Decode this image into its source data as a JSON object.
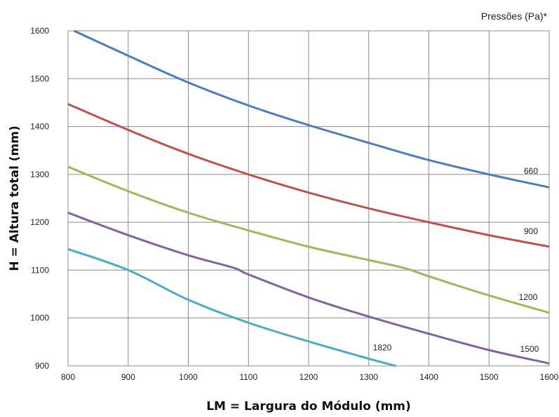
{
  "chart_data": {
    "type": "line",
    "title": "",
    "legend_title": "Pressões (Pa)*",
    "xlabel": "LM = Largura do Módulo (mm)",
    "ylabel": "H = Altura total (mm)",
    "xlim": [
      800,
      1600
    ],
    "ylim": [
      900,
      1600
    ],
    "xticks": [
      "800",
      "900",
      "1000",
      "1100",
      "1200",
      "1300",
      "1400",
      "1500",
      "1600"
    ],
    "yticks": [
      "900",
      "1000",
      "1100",
      "1200",
      "1300",
      "1400",
      "1500",
      "1600"
    ],
    "grid": true,
    "series": [
      {
        "name": "660",
        "color": "#4a7ebf",
        "x": [
          810,
          900,
          1000,
          1100,
          1200,
          1300,
          1400,
          1500,
          1600
        ],
        "y": [
          1600,
          1548,
          1492,
          1444,
          1403,
          1366,
          1330,
          1300,
          1273
        ]
      },
      {
        "name": "900",
        "color": "#c0504d",
        "x": [
          800,
          900,
          1000,
          1100,
          1200,
          1300,
          1400,
          1500,
          1600
        ],
        "y": [
          1447,
          1393,
          1343,
          1300,
          1262,
          1229,
          1200,
          1173,
          1149
        ]
      },
      {
        "name": "1200",
        "color": "#9bbb59",
        "x": [
          800,
          900,
          1000,
          1100,
          1200,
          1300,
          1360,
          1400,
          1500,
          1600
        ],
        "y": [
          1316,
          1265,
          1220,
          1183,
          1149,
          1121,
          1104,
          1087,
          1047,
          1011
        ]
      },
      {
        "name": "1500",
        "color": "#8064a2",
        "x": [
          800,
          900,
          1000,
          1075,
          1100,
          1200,
          1300,
          1400,
          1500,
          1600
        ],
        "y": [
          1220,
          1173,
          1131,
          1105,
          1091,
          1043,
          1003,
          967,
          933,
          905
        ]
      },
      {
        "name": "1820",
        "color": "#4bacc6",
        "x": [
          800,
          900,
          1000,
          1100,
          1200,
          1300,
          1345
        ],
        "y": [
          1144,
          1100,
          1038,
          990,
          951,
          915,
          900
        ]
      }
    ]
  }
}
